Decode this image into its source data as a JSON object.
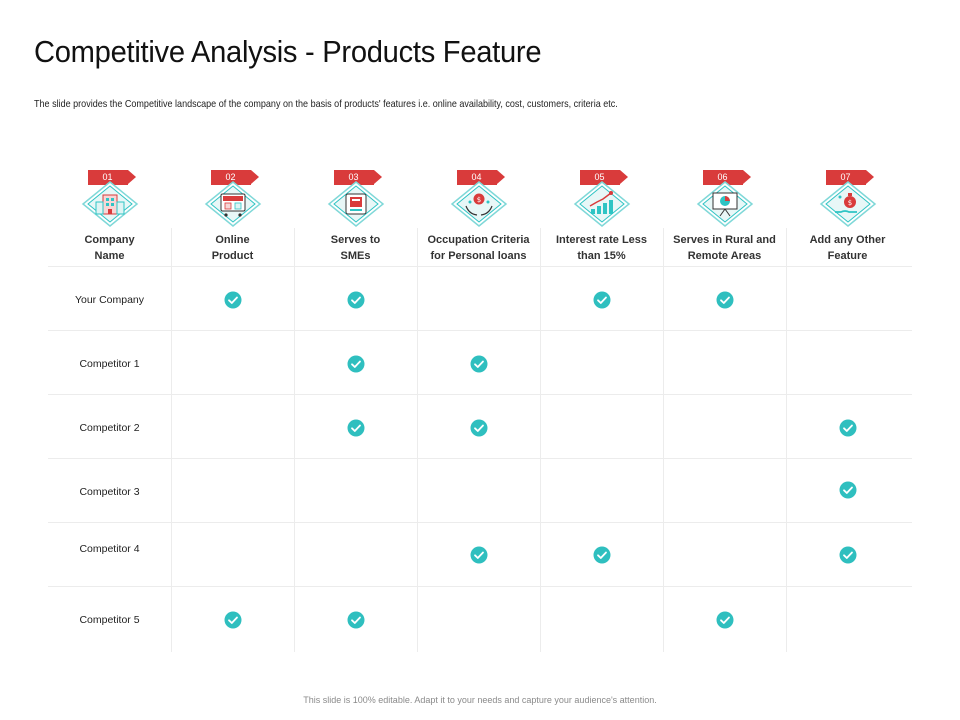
{
  "slide": {
    "title": "Competitive Analysis - Products Feature",
    "subtitle": "The slide provides the Competitive landscape of the company on the basis of products' features i.e. online availability,  cost, customers, criteria etc.",
    "footer": "This slide is 100% editable. Adapt it to your needs and capture your audience's attention."
  },
  "colors": {
    "accent_red": "#d93b3b",
    "teal": "#2ec4c4",
    "check": "#2fbfbf"
  },
  "columns": [
    {
      "number": "01",
      "line1": "Company",
      "line2": "Name",
      "icon": "building-icon"
    },
    {
      "number": "02",
      "line1": "Online",
      "line2": "Product",
      "icon": "online-shop-icon"
    },
    {
      "number": "03",
      "line1": "Serves to",
      "line2": "SMEs",
      "icon": "payment-machine-icon"
    },
    {
      "number": "04",
      "line1": "Occupation Criteria",
      "line2": "for Personal loans",
      "icon": "money-hands-icon"
    },
    {
      "number": "05",
      "line1": "Interest rate Less",
      "line2": "than 15%",
      "icon": "growth-chart-icon"
    },
    {
      "number": "06",
      "line1": "Serves in Rural and",
      "line2": "Remote Areas",
      "icon": "presentation-board-icon"
    },
    {
      "number": "07",
      "line1": "Add any Other",
      "line2": "Feature",
      "icon": "money-bag-hand-icon"
    }
  ],
  "rows": [
    {
      "name": "Your Company",
      "checks": [
        true,
        true,
        false,
        true,
        true,
        false
      ]
    },
    {
      "name": "Competitor 1",
      "checks": [
        false,
        true,
        true,
        false,
        false,
        false
      ]
    },
    {
      "name": "Competitor 2",
      "checks": [
        false,
        true,
        true,
        false,
        false,
        true
      ]
    },
    {
      "name": "Competitor 3",
      "checks": [
        false,
        false,
        false,
        false,
        false,
        true
      ]
    },
    {
      "name": "Competitor 4",
      "checks": [
        false,
        false,
        true,
        true,
        false,
        true
      ]
    },
    {
      "name": "Competitor 5",
      "checks": [
        true,
        true,
        false,
        false,
        true,
        false
      ]
    }
  ]
}
